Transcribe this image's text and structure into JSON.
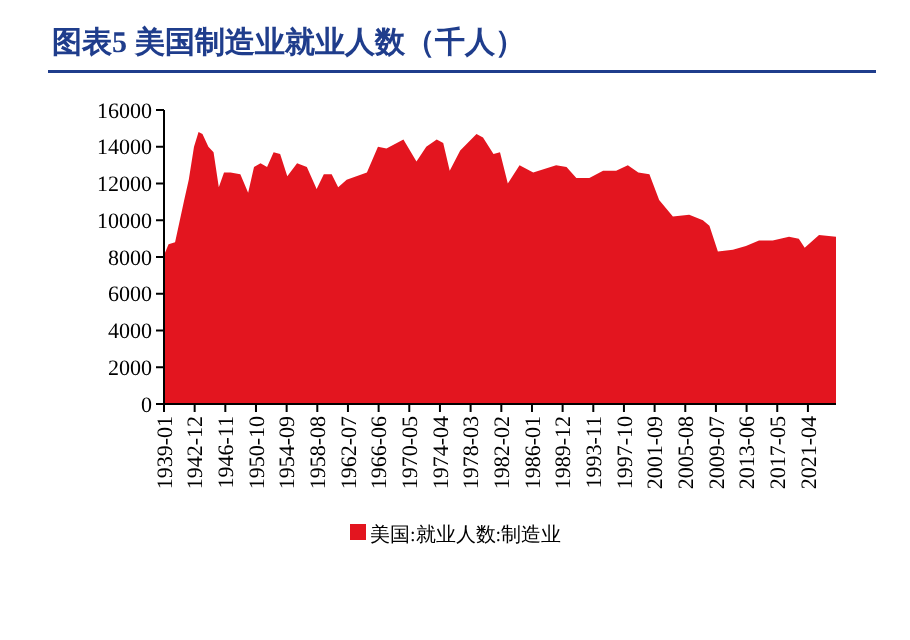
{
  "chart_data": {
    "type": "area",
    "title": "图表5 美国制造业就业人数（千人）",
    "x": [
      "1939-01",
      "1939-08",
      "1940-06",
      "1941-08",
      "1942-03",
      "1942-11",
      "1943-06",
      "1943-12",
      "1944-09",
      "1945-05",
      "1946-01",
      "1946-09",
      "1947-07",
      "1948-10",
      "1949-10",
      "1950-07",
      "1951-05",
      "1952-03",
      "1953-01",
      "1953-11",
      "1954-10",
      "1956-01",
      "1957-04",
      "1958-07",
      "1959-06",
      "1960-06",
      "1961-04",
      "1962-05",
      "1964-12",
      "1966-05",
      "1967-06",
      "1969-08",
      "1971-04",
      "1972-07",
      "1973-11",
      "1974-09",
      "1975-07",
      "1976-11",
      "1978-12",
      "1979-10",
      "1981-02",
      "1981-12",
      "1982-12",
      "1984-06",
      "1986-03",
      "1989-02",
      "1990-06",
      "1991-09",
      "1993-05",
      "1995-02",
      "1996-10",
      "1998-04",
      "1999-08",
      "2001-01",
      "2002-04",
      "2004-01",
      "2006-02",
      "2007-11",
      "2008-09",
      "2009-10",
      "2011-09",
      "2013-05",
      "2015-01",
      "2016-10",
      "2018-11",
      "2020-02",
      "2020-11",
      "2022-09",
      "2024-11"
    ],
    "series": [
      {
        "name": "美国:就业人数:制造业",
        "color": "#e3151f",
        "values": [
          8100,
          8700,
          8800,
          11100,
          12200,
          14000,
          14800,
          14700,
          14000,
          13700,
          11800,
          12600,
          12600,
          12500,
          11500,
          12900,
          13100,
          12900,
          13700,
          13600,
          12400,
          13100,
          12900,
          11700,
          12500,
          12500,
          11800,
          12200,
          12600,
          14000,
          13900,
          14400,
          13200,
          14000,
          14400,
          14200,
          12700,
          13800,
          14700,
          14500,
          13600,
          13700,
          12000,
          13000,
          12600,
          13000,
          12900,
          12300,
          12300,
          12700,
          12700,
          13000,
          12600,
          12500,
          11100,
          10200,
          10300,
          10000,
          9700,
          8300,
          8400,
          8600,
          8900,
          8900,
          9100,
          9000,
          8500,
          9200,
          9100
        ]
      }
    ],
    "xlim": [
      "1939-01",
      "2024-11"
    ],
    "xticks": [
      "1939-01",
      "1942-12",
      "1946-11",
      "1950-10",
      "1954-09",
      "1958-08",
      "1962-07",
      "1966-06",
      "1970-05",
      "1974-04",
      "1978-03",
      "1982-02",
      "1986-01",
      "1989-12",
      "1993-11",
      "1997-10",
      "2001-09",
      "2005-08",
      "2009-07",
      "2013-06",
      "2017-05",
      "2021-04"
    ],
    "ylim": [
      0,
      16000
    ],
    "yticks": [
      0,
      2000,
      4000,
      6000,
      8000,
      10000,
      12000,
      14000,
      16000
    ],
    "grid": false,
    "legend": "bottom"
  }
}
